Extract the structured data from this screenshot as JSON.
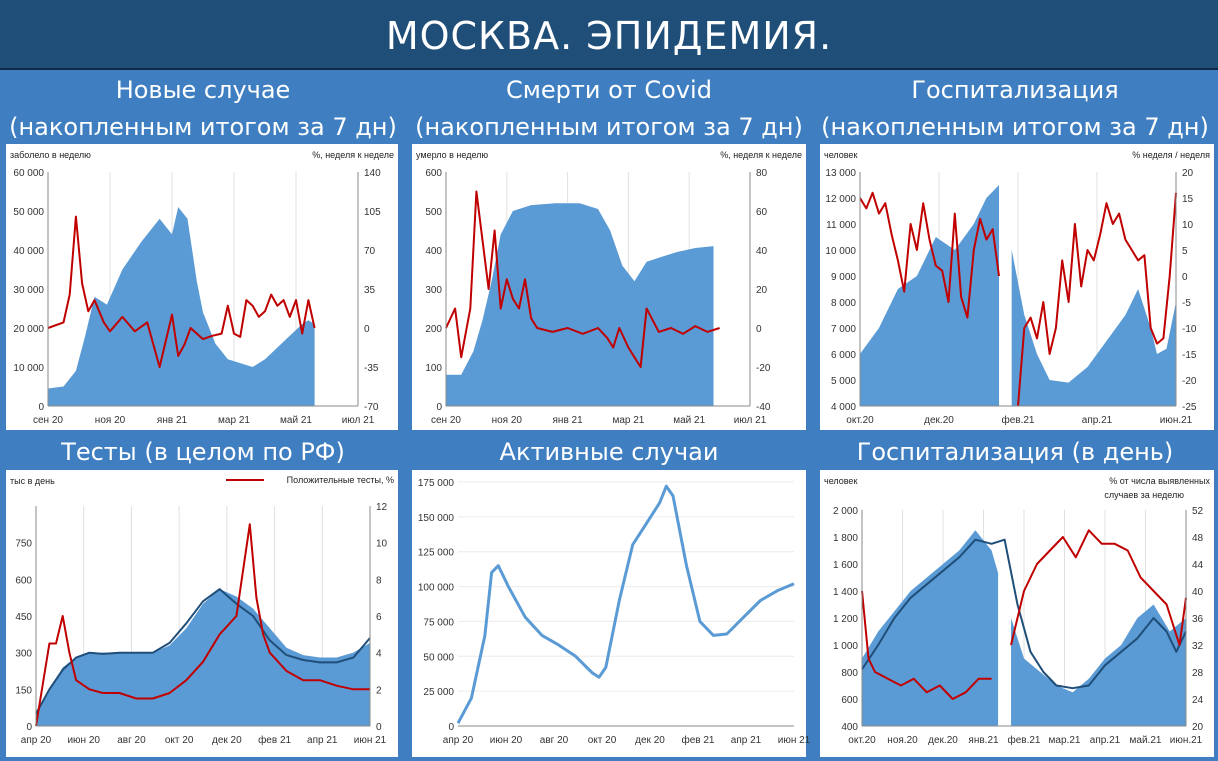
{
  "header": {
    "title": "МОСКВА. ЭПИДЕМИЯ."
  },
  "panels": [
    {
      "title1": "Новые случае",
      "title2": "(накопленным итогом за 7 дн)"
    },
    {
      "title1": "Смерти от Covid",
      "title2": "(накопленным итогом за 7 дн)"
    },
    {
      "title1": "Госпитализация",
      "title2": "(накопленным итогом за 7 дн)"
    },
    {
      "title1": "Тесты (в целом по РФ)"
    },
    {
      "title1": "Активные случаи"
    },
    {
      "title1": "Госпитализация (в день)"
    }
  ],
  "colors": {
    "bars": "#5b9bd5",
    "red": "#c00000",
    "navy": "#1f4e79",
    "line": "#5b9bd5"
  },
  "chart_data": [
    {
      "type": "bar",
      "left_unit": "заболело в неделю",
      "right_unit": "%, неделя к неделе",
      "ylim": [
        0,
        60000
      ],
      "y2lim": [
        -70,
        140
      ],
      "yticks": [
        "0",
        "10 000",
        "20 000",
        "30 000",
        "40 000",
        "50 000",
        "60 000"
      ],
      "y2ticks": [
        "-70",
        "-35",
        "0",
        "35",
        "70",
        "105",
        "140"
      ],
      "xticks": [
        "сен 20",
        "ноя 20",
        "янв 21",
        "мар 21",
        "май 21",
        "июл 21"
      ],
      "series": [
        {
          "kind": "bar",
          "x": [
            0,
            0.05,
            0.09,
            0.12,
            0.15,
            0.19,
            0.24,
            0.3,
            0.36,
            0.4,
            0.42,
            0.45,
            0.48,
            0.5,
            0.54,
            0.58,
            0.62,
            0.66,
            0.7,
            0.74,
            0.78,
            0.82,
            0.84,
            0.86
          ],
          "values": [
            4500,
            5000,
            9000,
            18000,
            28000,
            26000,
            35000,
            42000,
            48000,
            44000,
            51000,
            48000,
            32000,
            24000,
            16000,
            12000,
            11000,
            10000,
            12000,
            15000,
            18000,
            21000,
            22000,
            21000
          ]
        },
        {
          "kind": "line",
          "color": "red",
          "x": [
            0,
            0.05,
            0.07,
            0.09,
            0.11,
            0.13,
            0.15,
            0.18,
            0.2,
            0.24,
            0.28,
            0.32,
            0.36,
            0.4,
            0.42,
            0.44,
            0.46,
            0.48,
            0.5,
            0.53,
            0.56,
            0.58,
            0.6,
            0.62,
            0.64,
            0.66,
            0.68,
            0.7,
            0.72,
            0.74,
            0.76,
            0.78,
            0.8,
            0.82,
            0.84,
            0.86
          ],
          "values": [
            0,
            5,
            30,
            100,
            40,
            15,
            25,
            5,
            -3,
            10,
            -3,
            5,
            -35,
            12,
            -25,
            -15,
            0,
            -5,
            -10,
            -7,
            -5,
            20,
            -5,
            -8,
            25,
            20,
            10,
            15,
            30,
            20,
            25,
            10,
            25,
            -5,
            25,
            0
          ]
        }
      ]
    },
    {
      "type": "bar",
      "left_unit": "умерло в неделю",
      "right_unit": "%, неделя к неделе",
      "ylim": [
        0,
        600
      ],
      "y2lim": [
        -40,
        80
      ],
      "yticks": [
        "0",
        "100",
        "200",
        "300",
        "400",
        "500",
        "600"
      ],
      "y2ticks": [
        "-40",
        "-20",
        "0",
        "20",
        "40",
        "60",
        "80"
      ],
      "xticks": [
        "сен 20",
        "ноя 20",
        "янв 21",
        "мар 21",
        "май 21",
        "июл 21"
      ],
      "series": [
        {
          "kind": "bar",
          "x": [
            0,
            0.05,
            0.09,
            0.12,
            0.15,
            0.18,
            0.22,
            0.28,
            0.36,
            0.44,
            0.5,
            0.54,
            0.58,
            0.62,
            0.66,
            0.7,
            0.76,
            0.82,
            0.88
          ],
          "values": [
            80,
            80,
            140,
            220,
            320,
            440,
            500,
            515,
            520,
            520,
            505,
            450,
            360,
            320,
            370,
            380,
            395,
            405,
            410
          ]
        },
        {
          "kind": "line",
          "color": "red",
          "x": [
            0,
            0.03,
            0.05,
            0.08,
            0.1,
            0.12,
            0.14,
            0.16,
            0.18,
            0.2,
            0.22,
            0.24,
            0.26,
            0.28,
            0.3,
            0.35,
            0.4,
            0.45,
            0.5,
            0.53,
            0.55,
            0.57,
            0.6,
            0.62,
            0.64,
            0.66,
            0.7,
            0.74,
            0.78,
            0.82,
            0.86,
            0.9
          ],
          "values": [
            0,
            10,
            -15,
            10,
            70,
            45,
            20,
            50,
            10,
            25,
            15,
            10,
            25,
            5,
            0,
            -2,
            0,
            -3,
            0,
            -5,
            -10,
            0,
            -10,
            -15,
            -20,
            10,
            -2,
            0,
            -3,
            1,
            -2,
            0
          ]
        }
      ]
    },
    {
      "type": "bar",
      "left_unit": "человек",
      "right_unit": "% неделя / неделя",
      "ylim": [
        4000,
        13000
      ],
      "y2lim": [
        -25,
        20
      ],
      "yticks": [
        "4 000",
        "5 000",
        "6 000",
        "7 000",
        "8 000",
        "9 000",
        "10 000",
        "11 000",
        "12 000",
        "13 000"
      ],
      "y2ticks": [
        "-25",
        "-20",
        "-15",
        "-10",
        "-5",
        "0",
        "5",
        "10",
        "15",
        "20"
      ],
      "xticks": [
        "окт.20",
        "дек.20",
        "фев.21",
        "апр.21",
        "июн.21"
      ],
      "gap": [
        0.44,
        0.48
      ],
      "series": [
        {
          "kind": "bar",
          "x": [
            0,
            0.06,
            0.12,
            0.18,
            0.24,
            0.3,
            0.36,
            0.4,
            0.44,
            0.48,
            0.52,
            0.56,
            0.6,
            0.66,
            0.72,
            0.78,
            0.84,
            0.88,
            0.92,
            0.94,
            0.97,
            1.0
          ],
          "values": [
            6000,
            7000,
            8500,
            9000,
            10500,
            10000,
            11000,
            12000,
            12500,
            10000,
            7500,
            6000,
            5000,
            4900,
            5500,
            6500,
            7500,
            8500,
            7000,
            6000,
            6200,
            8000
          ]
        },
        {
          "kind": "line",
          "color": "red",
          "x": [
            0,
            0.02,
            0.04,
            0.06,
            0.08,
            0.1,
            0.12,
            0.14,
            0.16,
            0.18,
            0.2,
            0.22,
            0.24,
            0.26,
            0.28,
            0.3,
            0.32,
            0.34,
            0.36,
            0.38,
            0.4,
            0.42,
            0.44
          ],
          "values": [
            15,
            13,
            16,
            12,
            14,
            8,
            3,
            -3,
            10,
            5,
            14,
            7,
            2,
            1,
            -5,
            12,
            -4,
            -8,
            5,
            11,
            7,
            9,
            0
          ]
        },
        {
          "kind": "line",
          "color": "red",
          "x": [
            0.5,
            0.52,
            0.54,
            0.56,
            0.58,
            0.6,
            0.62,
            0.64,
            0.66,
            0.68,
            0.7,
            0.72,
            0.74,
            0.76,
            0.78,
            0.8,
            0.82,
            0.84,
            0.86,
            0.88,
            0.9,
            0.92,
            0.94,
            0.96,
            0.98,
            1.0
          ],
          "values": [
            -25,
            -10,
            -8,
            -12,
            -5,
            -15,
            -10,
            3,
            -5,
            10,
            -2,
            5,
            3,
            8,
            14,
            10,
            12,
            7,
            5,
            3,
            4,
            -10,
            -13,
            -12,
            0,
            16
          ]
        }
      ]
    },
    {
      "type": "bar",
      "left_unit": "тыс в день",
      "legend": "Положительные тесты, %",
      "legend_position": "top-right",
      "ylim": [
        0,
        900
      ],
      "y2lim": [
        0,
        12
      ],
      "yticks": [
        "0",
        "150",
        "300",
        "450",
        "600",
        "750"
      ],
      "y2ticks": [
        "0",
        "2",
        "4",
        "6",
        "8",
        "10",
        "12"
      ],
      "xticks": [
        "апр 20",
        "июн 20",
        "авг 20",
        "окт 20",
        "дек 20",
        "фев 21",
        "апр 21",
        "июн 21"
      ],
      "series": [
        {
          "kind": "bar",
          "x": [
            0,
            0.04,
            0.08,
            0.12,
            0.16,
            0.2,
            0.25,
            0.3,
            0.35,
            0.4,
            0.45,
            0.5,
            0.55,
            0.6,
            0.65,
            0.7,
            0.75,
            0.8,
            0.85,
            0.9,
            0.95,
            1.0
          ],
          "values": [
            60,
            150,
            240,
            280,
            300,
            300,
            300,
            300,
            300,
            330,
            400,
            500,
            560,
            530,
            480,
            400,
            320,
            290,
            280,
            280,
            300,
            340
          ]
        },
        {
          "kind": "line",
          "color": "navy",
          "x": [
            0,
            0.04,
            0.08,
            0.12,
            0.16,
            0.2,
            0.25,
            0.3,
            0.35,
            0.4,
            0.45,
            0.5,
            0.55,
            0.6,
            0.65,
            0.7,
            0.75,
            0.8,
            0.85,
            0.9,
            0.95,
            1.0
          ],
          "values": [
            50,
            150,
            230,
            280,
            300,
            295,
            300,
            300,
            300,
            340,
            420,
            510,
            560,
            500,
            450,
            350,
            290,
            270,
            260,
            260,
            280,
            360
          ]
        },
        {
          "kind": "line",
          "color": "red",
          "x": [
            0,
            0.04,
            0.06,
            0.08,
            0.1,
            0.12,
            0.16,
            0.2,
            0.25,
            0.3,
            0.35,
            0.4,
            0.45,
            0.5,
            0.55,
            0.6,
            0.64,
            0.66,
            0.68,
            0.7,
            0.75,
            0.8,
            0.85,
            0.9,
            0.95,
            1.0
          ],
          "values": [
            0,
            4.5,
            4.5,
            6,
            4,
            2.5,
            2,
            1.8,
            1.8,
            1.5,
            1.5,
            1.8,
            2.5,
            3.5,
            5,
            6,
            11,
            7,
            5,
            4,
            3,
            2.5,
            2.5,
            2.2,
            2,
            2
          ]
        }
      ]
    },
    {
      "type": "line",
      "ylim": [
        0,
        175000
      ],
      "yticks": [
        "0",
        "25 000",
        "50 000",
        "75 000",
        "100 000",
        "125 000",
        "150 000",
        "175 000"
      ],
      "xticks": [
        "апр 20",
        "июн 20",
        "авг 20",
        "окт 20",
        "дек 20",
        "фев 21",
        "апр 21",
        "июн 21"
      ],
      "series": [
        {
          "kind": "line",
          "color": "line",
          "x": [
            0,
            0.04,
            0.08,
            0.1,
            0.12,
            0.15,
            0.2,
            0.25,
            0.3,
            0.35,
            0.4,
            0.42,
            0.44,
            0.48,
            0.52,
            0.56,
            0.6,
            0.62,
            0.64,
            0.68,
            0.72,
            0.76,
            0.8,
            0.85,
            0.9,
            0.95,
            1.0
          ],
          "values": [
            2000,
            20000,
            65000,
            110000,
            115000,
            100000,
            78000,
            65000,
            58000,
            50000,
            38000,
            35000,
            42000,
            90000,
            130000,
            145000,
            160000,
            172000,
            165000,
            115000,
            75000,
            65000,
            66000,
            78000,
            90000,
            97000,
            102000
          ]
        }
      ]
    },
    {
      "type": "bar",
      "left_unit": "человек",
      "right_unit": "% от числа выявленных",
      "right_unit2": "случаев за неделю",
      "ylim": [
        400,
        2000
      ],
      "y2lim": [
        20,
        52
      ],
      "yticks": [
        "400",
        "600",
        "800",
        "1 000",
        "1 200",
        "1 400",
        "1 600",
        "1 800",
        "2 000"
      ],
      "y2ticks": [
        "20",
        "24",
        "28",
        "32",
        "36",
        "40",
        "44",
        "48",
        "52"
      ],
      "xticks": [
        "окт.20",
        "ноя.20",
        "дек.20",
        "янв.21",
        "фев.21",
        "мар.21",
        "апр.21",
        "май.21",
        "июн.21"
      ],
      "gap": [
        0.42,
        0.46
      ],
      "series": [
        {
          "kind": "bar",
          "x": [
            0,
            0.05,
            0.1,
            0.15,
            0.2,
            0.25,
            0.3,
            0.35,
            0.4,
            0.46,
            0.5,
            0.55,
            0.6,
            0.65,
            0.7,
            0.75,
            0.8,
            0.85,
            0.9,
            0.95,
            1.0
          ],
          "values": [
            900,
            1100,
            1250,
            1400,
            1500,
            1600,
            1700,
            1850,
            1700,
            1200,
            900,
            800,
            700,
            650,
            750,
            900,
            1000,
            1200,
            1300,
            1100,
            1200
          ]
        },
        {
          "kind": "line",
          "color": "navy",
          "x": [
            0,
            0.05,
            0.1,
            0.15,
            0.2,
            0.25,
            0.3,
            0.35,
            0.4,
            0.44,
            0.48,
            0.52,
            0.56,
            0.6,
            0.65,
            0.7,
            0.75,
            0.8,
            0.85,
            0.9,
            0.94,
            0.97,
            1.0
          ],
          "values": [
            820,
            1000,
            1200,
            1350,
            1450,
            1550,
            1650,
            1780,
            1750,
            1780,
            1300,
            950,
            800,
            700,
            680,
            700,
            850,
            950,
            1050,
            1200,
            1100,
            950,
            1100
          ]
        },
        {
          "kind": "line",
          "color": "red",
          "x": [
            0,
            0.02,
            0.04,
            0.08,
            0.12,
            0.16,
            0.2,
            0.24,
            0.28,
            0.32,
            0.36,
            0.4
          ],
          "values": [
            40,
            30,
            28,
            27,
            26,
            27,
            25,
            26,
            24,
            25,
            27,
            27
          ]
        },
        {
          "kind": "line",
          "color": "red",
          "x": [
            0.46,
            0.5,
            0.54,
            0.58,
            0.62,
            0.66,
            0.7,
            0.74,
            0.78,
            0.82,
            0.86,
            0.9,
            0.94,
            0.98,
            1.0
          ],
          "values": [
            32,
            40,
            44,
            46,
            48,
            45,
            49,
            47,
            47,
            46,
            42,
            40,
            38,
            32,
            39
          ]
        }
      ]
    }
  ]
}
